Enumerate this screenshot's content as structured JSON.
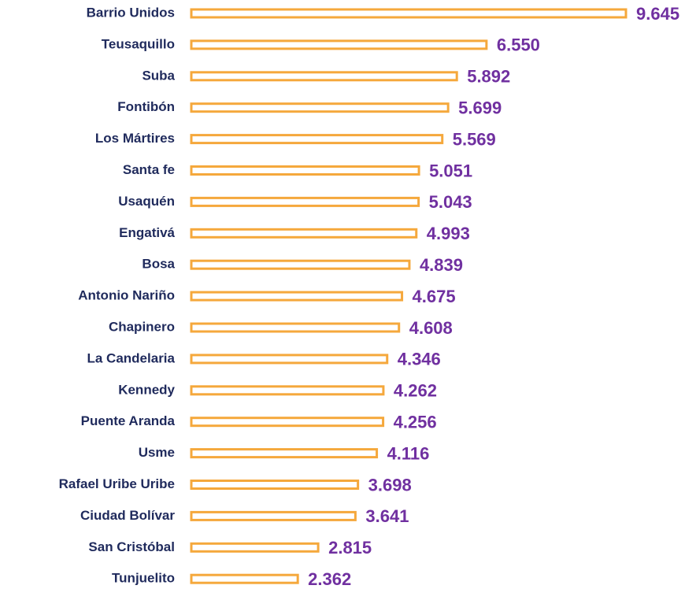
{
  "chart_data": {
    "type": "bar",
    "orientation": "horizontal",
    "categories": [
      "Barrio Unidos",
      "Teusaquillo",
      "Suba",
      "Fontibón",
      "Los Mártires",
      "Santa fe",
      "Usaquén",
      "Engativá",
      "Bosa",
      "Antonio Nariño",
      "Chapinero",
      "La Candelaria",
      "Kennedy",
      "Puente Aranda",
      "Usme",
      "Rafael Uribe Uribe",
      "Ciudad Bolívar",
      "San Cristóbal",
      "Tunjuelito"
    ],
    "values": [
      9645,
      6550,
      5892,
      5699,
      5569,
      5051,
      5043,
      4993,
      4839,
      4675,
      4608,
      4346,
      4262,
      4256,
      4116,
      3698,
      3641,
      2815,
      2362
    ],
    "value_labels": [
      "9.645",
      "6.550",
      "5.892",
      "5.699",
      "5.569",
      "5.051",
      "5.043",
      "4.993",
      "4.839",
      "4.675",
      "4.608",
      "4.346",
      "4.262",
      "4.256",
      "4.116",
      "3.698",
      "3.641",
      "2.815",
      "2.362"
    ],
    "color": "#f5a83c",
    "label_color": "#7030a0"
  }
}
